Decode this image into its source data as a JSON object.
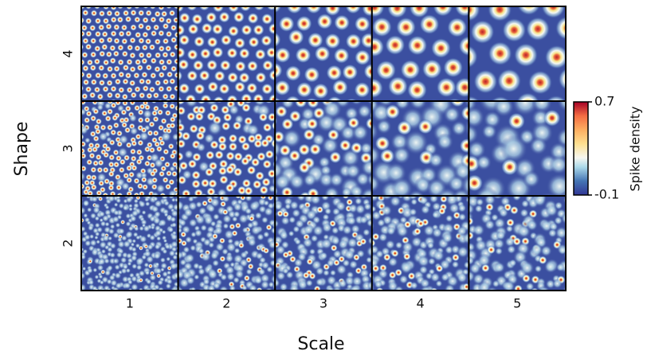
{
  "chart_data": {
    "type": "grid",
    "xlabel": "Scale",
    "ylabel": "Shape",
    "columns": [
      "1",
      "2",
      "3",
      "4",
      "5"
    ],
    "rows": [
      "4",
      "3",
      "2"
    ],
    "colorbar": {
      "label": "Spike density",
      "clim": [
        -0.1,
        0.7
      ],
      "ticks": [
        -0.1,
        0.7
      ]
    }
  }
}
